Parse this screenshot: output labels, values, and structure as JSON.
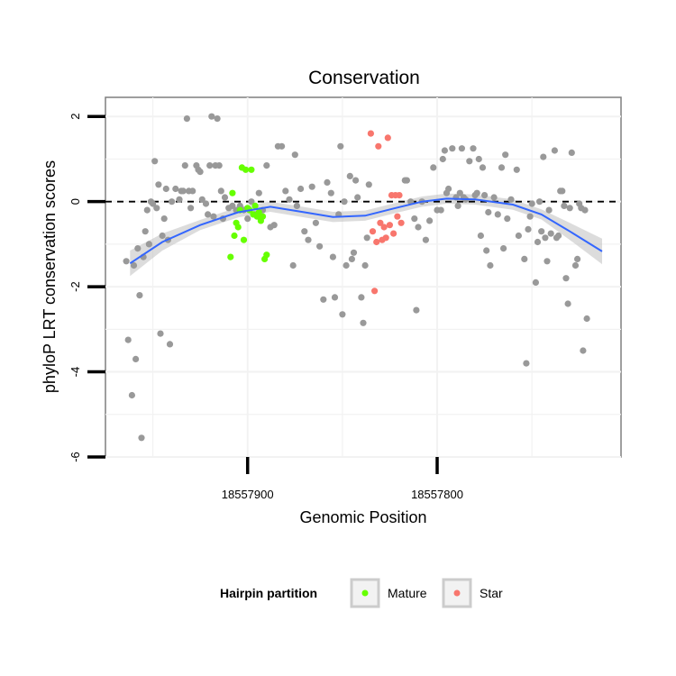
{
  "chart_data": {
    "type": "scatter",
    "title": "Conservation",
    "xlabel": "Genomic Position",
    "ylabel": "phyloP LRT conservation scores",
    "x_reversed": true,
    "xlim": [
      18557975,
      18557703
    ],
    "ylim": [
      -6,
      2.45
    ],
    "x_ticks": [
      18557900,
      18557800
    ],
    "y_ticks": [
      2,
      0,
      -2,
      -4,
      -6
    ],
    "grid": true,
    "reference_line": {
      "y": 0,
      "style": "dashed"
    },
    "smooth": {
      "color": "#3366ff",
      "band_color": "#bfbfbf",
      "points": [
        [
          18557962,
          -1.45
        ],
        [
          18557945,
          -0.95
        ],
        [
          18557925,
          -0.55
        ],
        [
          18557905,
          -0.25
        ],
        [
          18557888,
          -0.12
        ],
        [
          18557870,
          -0.25
        ],
        [
          18557855,
          -0.36
        ],
        [
          18557838,
          -0.33
        ],
        [
          18557822,
          -0.15
        ],
        [
          18557808,
          0.0
        ],
        [
          18557795,
          0.07
        ],
        [
          18557780,
          0.05
        ],
        [
          18557760,
          -0.07
        ],
        [
          18557745,
          -0.3
        ],
        [
          18557730,
          -0.7
        ],
        [
          18557713,
          -1.17
        ]
      ]
    },
    "legend": {
      "title": "Hairpin partition",
      "position": "bottom",
      "entries": [
        {
          "label": "Mature",
          "color": "#66ff00"
        },
        {
          "label": "Star",
          "color": "#f8766d"
        }
      ]
    },
    "series": [
      {
        "group": "other",
        "color": "#999999",
        "points": [
          [
            18557964,
            -1.4
          ],
          [
            18557963,
            -3.25
          ],
          [
            18557961,
            -4.55
          ],
          [
            18557960,
            -1.5
          ],
          [
            18557959,
            -3.7
          ],
          [
            18557958,
            -1.1
          ],
          [
            18557957,
            -2.2
          ],
          [
            18557956,
            -5.55
          ],
          [
            18557955,
            -1.3
          ],
          [
            18557954,
            -0.7
          ],
          [
            18557953,
            -0.2
          ],
          [
            18557952,
            -1.0
          ],
          [
            18557951,
            0.0
          ],
          [
            18557950,
            -0.05
          ],
          [
            18557949,
            0.95
          ],
          [
            18557948,
            -0.15
          ],
          [
            18557947,
            0.4
          ],
          [
            18557946,
            -3.1
          ],
          [
            18557945,
            -0.8
          ],
          [
            18557944,
            -0.4
          ],
          [
            18557943,
            0.3
          ],
          [
            18557942,
            -0.9
          ],
          [
            18557941,
            -3.35
          ],
          [
            18557940,
            0.0
          ],
          [
            18557938,
            0.3
          ],
          [
            18557936,
            0.05
          ],
          [
            18557935,
            0.25
          ],
          [
            18557934,
            0.25
          ],
          [
            18557933,
            0.85
          ],
          [
            18557932,
            1.95
          ],
          [
            18557931,
            0.25
          ],
          [
            18557930,
            -0.15
          ],
          [
            18557929,
            0.25
          ],
          [
            18557927,
            0.85
          ],
          [
            18557926,
            0.75
          ],
          [
            18557925,
            0.7
          ],
          [
            18557924,
            0.05
          ],
          [
            18557922,
            -0.05
          ],
          [
            18557921,
            -0.3
          ],
          [
            18557920,
            0.85
          ],
          [
            18557919,
            2.0
          ],
          [
            18557918,
            -0.35
          ],
          [
            18557917,
            0.85
          ],
          [
            18557916,
            1.95
          ],
          [
            18557915,
            0.85
          ],
          [
            18557914,
            0.25
          ],
          [
            18557913,
            -0.4
          ],
          [
            18557912,
            0.1
          ],
          [
            18557910,
            -0.15
          ],
          [
            18557908,
            -0.1
          ],
          [
            18557906,
            -0.2
          ],
          [
            18557904,
            -0.1
          ],
          [
            18557902,
            -0.2
          ],
          [
            18557900,
            -0.4
          ],
          [
            18557898,
            0.0
          ],
          [
            18557896,
            -0.3
          ],
          [
            18557894,
            0.2
          ],
          [
            18557892,
            -0.2
          ],
          [
            18557890,
            0.85
          ],
          [
            18557888,
            -0.6
          ],
          [
            18557886,
            -0.55
          ],
          [
            18557884,
            1.3
          ],
          [
            18557882,
            1.3
          ],
          [
            18557880,
            0.25
          ],
          [
            18557878,
            0.05
          ],
          [
            18557876,
            -1.5
          ],
          [
            18557875,
            1.1
          ],
          [
            18557874,
            -0.1
          ],
          [
            18557872,
            0.3
          ],
          [
            18557870,
            -0.7
          ],
          [
            18557868,
            -0.9
          ],
          [
            18557866,
            0.35
          ],
          [
            18557864,
            -0.5
          ],
          [
            18557862,
            -1.05
          ],
          [
            18557860,
            -2.3
          ],
          [
            18557858,
            0.45
          ],
          [
            18557856,
            0.2
          ],
          [
            18557855,
            -1.3
          ],
          [
            18557854,
            -2.25
          ],
          [
            18557852,
            -0.3
          ],
          [
            18557851,
            1.3
          ],
          [
            18557850,
            -2.65
          ],
          [
            18557849,
            0.0
          ],
          [
            18557848,
            -1.5
          ],
          [
            18557846,
            0.6
          ],
          [
            18557845,
            -1.35
          ],
          [
            18557844,
            -1.2
          ],
          [
            18557843,
            0.5
          ],
          [
            18557842,
            0.1
          ],
          [
            18557840,
            -2.25
          ],
          [
            18557839,
            -2.85
          ],
          [
            18557838,
            -1.5
          ],
          [
            18557837,
            -0.85
          ],
          [
            18557836,
            0.4
          ],
          [
            18557817,
            0.5
          ],
          [
            18557816,
            0.5
          ],
          [
            18557814,
            0.0
          ],
          [
            18557812,
            -0.4
          ],
          [
            18557811,
            -2.55
          ],
          [
            18557810,
            -0.6
          ],
          [
            18557808,
            0.0
          ],
          [
            18557806,
            -0.9
          ],
          [
            18557804,
            -0.45
          ],
          [
            18557802,
            0.8
          ],
          [
            18557800,
            -0.2
          ],
          [
            18557798,
            -0.2
          ],
          [
            18557797,
            1.0
          ],
          [
            18557796,
            1.2
          ],
          [
            18557795,
            0.2
          ],
          [
            18557794,
            0.3
          ],
          [
            18557792,
            1.25
          ],
          [
            18557790,
            0.1
          ],
          [
            18557789,
            -0.1
          ],
          [
            18557788,
            0.2
          ],
          [
            18557787,
            1.25
          ],
          [
            18557786,
            0.1
          ],
          [
            18557785,
            0.05
          ],
          [
            18557783,
            0.95
          ],
          [
            18557781,
            1.25
          ],
          [
            18557780,
            0.15
          ],
          [
            18557779,
            0.2
          ],
          [
            18557778,
            1.0
          ],
          [
            18557777,
            -0.8
          ],
          [
            18557776,
            0.8
          ],
          [
            18557775,
            0.15
          ],
          [
            18557774,
            -1.15
          ],
          [
            18557773,
            -0.25
          ],
          [
            18557772,
            -1.5
          ],
          [
            18557770,
            0.1
          ],
          [
            18557768,
            -0.3
          ],
          [
            18557766,
            0.8
          ],
          [
            18557765,
            -1.1
          ],
          [
            18557764,
            1.1
          ],
          [
            18557763,
            -0.4
          ],
          [
            18557761,
            0.05
          ],
          [
            18557758,
            0.75
          ],
          [
            18557757,
            -0.8
          ],
          [
            18557754,
            -1.35
          ],
          [
            18557753,
            -3.8
          ],
          [
            18557752,
            -0.65
          ],
          [
            18557751,
            -0.35
          ],
          [
            18557750,
            -0.05
          ],
          [
            18557748,
            -1.9
          ],
          [
            18557747,
            -0.95
          ],
          [
            18557746,
            0.0
          ],
          [
            18557745,
            -0.7
          ],
          [
            18557744,
            1.05
          ],
          [
            18557743,
            -0.85
          ],
          [
            18557742,
            -1.4
          ],
          [
            18557741,
            -0.2
          ],
          [
            18557740,
            -0.75
          ],
          [
            18557738,
            1.2
          ],
          [
            18557737,
            -0.85
          ],
          [
            18557736,
            -0.8
          ],
          [
            18557735,
            0.25
          ],
          [
            18557734,
            0.25
          ],
          [
            18557733,
            -0.1
          ],
          [
            18557732,
            -1.8
          ],
          [
            18557731,
            -2.4
          ],
          [
            18557730,
            -0.15
          ],
          [
            18557729,
            1.15
          ],
          [
            18557727,
            -1.5
          ],
          [
            18557726,
            -1.35
          ],
          [
            18557725,
            -0.05
          ],
          [
            18557724,
            -0.15
          ],
          [
            18557723,
            -3.5
          ],
          [
            18557722,
            -0.2
          ],
          [
            18557721,
            -2.75
          ]
        ]
      },
      {
        "group": "Mature",
        "color": "#66ff00",
        "points": [
          [
            18557909,
            -1.3
          ],
          [
            18557908,
            0.2
          ],
          [
            18557907,
            -0.8
          ],
          [
            18557906,
            -0.5
          ],
          [
            18557905,
            -0.6
          ],
          [
            18557904,
            -0.2
          ],
          [
            18557903,
            0.8
          ],
          [
            18557902,
            -0.9
          ],
          [
            18557901,
            0.75
          ],
          [
            18557900,
            -0.15
          ],
          [
            18557899,
            -0.2
          ],
          [
            18557898,
            0.75
          ],
          [
            18557897,
            -0.3
          ],
          [
            18557896,
            -0.1
          ],
          [
            18557895,
            -0.35
          ],
          [
            18557894,
            -0.25
          ],
          [
            18557893,
            -0.45
          ],
          [
            18557892,
            -0.35
          ],
          [
            18557891,
            -1.35
          ],
          [
            18557890,
            -1.25
          ]
        ]
      },
      {
        "group": "Star",
        "color": "#f8766d",
        "points": [
          [
            18557835,
            1.6
          ],
          [
            18557834,
            -0.7
          ],
          [
            18557833,
            -2.1
          ],
          [
            18557832,
            -0.95
          ],
          [
            18557831,
            1.3
          ],
          [
            18557830,
            -0.5
          ],
          [
            18557829,
            -0.9
          ],
          [
            18557828,
            -0.6
          ],
          [
            18557827,
            -0.85
          ],
          [
            18557826,
            1.5
          ],
          [
            18557825,
            -0.55
          ],
          [
            18557824,
            0.15
          ],
          [
            18557823,
            -0.75
          ],
          [
            18557822,
            0.15
          ],
          [
            18557821,
            -0.35
          ],
          [
            18557820,
            0.15
          ],
          [
            18557819,
            -0.5
          ]
        ]
      }
    ]
  }
}
